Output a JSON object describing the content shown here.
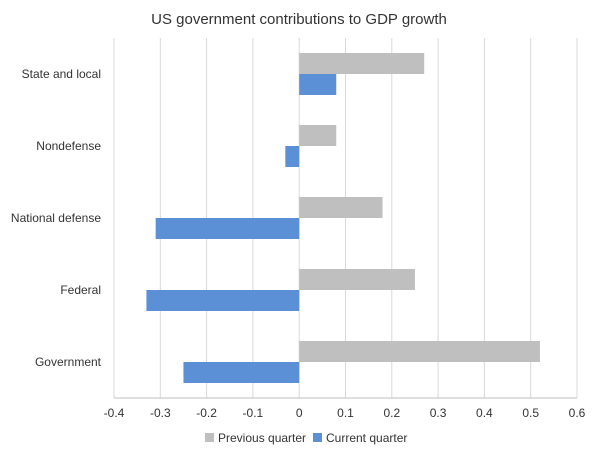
{
  "chart_data": {
    "type": "bar",
    "orientation": "horizontal",
    "title": "US government contributions to GDP growth",
    "categories": [
      "State and local",
      "Nondefense",
      "National defense",
      "Federal",
      "Government"
    ],
    "series": [
      {
        "name": "Previous quarter",
        "values": [
          0.27,
          0.08,
          0.18,
          0.25,
          0.52
        ],
        "color": "#BFBFBF"
      },
      {
        "name": "Current quarter",
        "values": [
          0.08,
          -0.03,
          -0.31,
          -0.33,
          -0.25
        ],
        "color": "#5B8FD6"
      }
    ],
    "xlim": [
      -0.4,
      0.6
    ],
    "xticks": [
      "-0.4",
      "-0.3",
      "-0.2",
      "-0.1",
      "0",
      "0.1",
      "0.2",
      "0.3",
      "0.4",
      "0.5",
      "0.6"
    ],
    "grid": true,
    "legend_position": "bottom"
  }
}
